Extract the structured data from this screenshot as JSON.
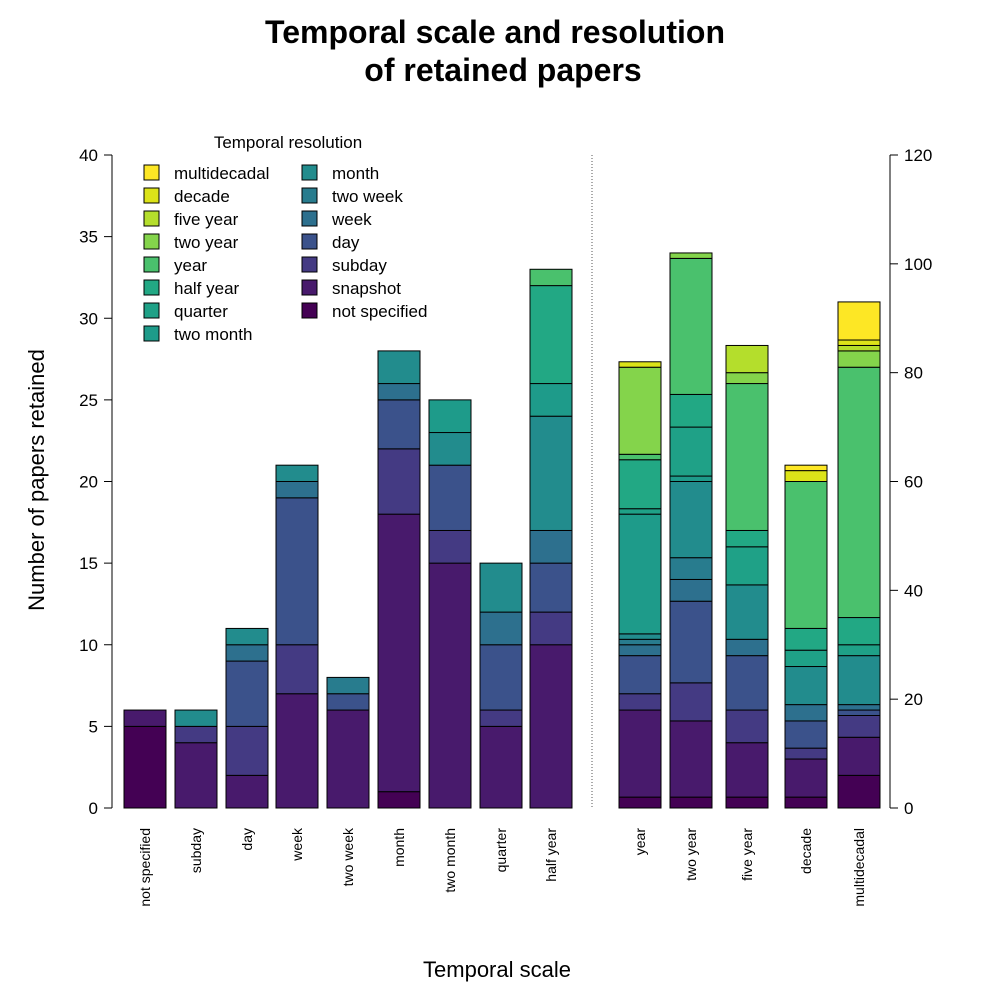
{
  "chart_data": {
    "type": "bar",
    "stacked": true,
    "title": "Temporal scale and resolution\nof retained papers",
    "title_lines": [
      "Temporal scale and resolution",
      "of retained papers"
    ],
    "xlabel": "Temporal scale",
    "ylabel": "Number of papers retained",
    "legend_title": "Temporal resolution",
    "legend_placement": "top-left",
    "grid": false,
    "resolutions": [
      "multidecadal",
      "decade",
      "five year",
      "two year",
      "year",
      "half year",
      "quarter",
      "two month",
      "month",
      "two week",
      "week",
      "day",
      "subday",
      "snapshot",
      "not specified"
    ],
    "colors": {
      "multidecadal": "#FDE725",
      "decade": "#DCE319",
      "five year": "#B4DE2C",
      "two year": "#84D44B",
      "year": "#4AC16D",
      "half year": "#22A884",
      "quarter": "#1FA187",
      "two month": "#1E9B8A",
      "month": "#228C8D",
      "two week": "#287C8E",
      "week": "#2D708E",
      "day": "#3B528B",
      "subday": "#443A83",
      "snapshot": "#481A6C",
      "not specified": "#440154"
    },
    "panels": [
      {
        "axis_side": "left",
        "ylim": [
          0,
          40
        ],
        "yticks": [
          0,
          5,
          10,
          15,
          20,
          25,
          30,
          35,
          40
        ],
        "bars": [
          {
            "category": "not specified",
            "segments": [
              {
                "res": "not specified",
                "value": 5
              },
              {
                "res": "snapshot",
                "value": 1
              }
            ]
          },
          {
            "category": "subday",
            "segments": [
              {
                "res": "snapshot",
                "value": 4
              },
              {
                "res": "subday",
                "value": 1
              },
              {
                "res": "month",
                "value": 1
              }
            ]
          },
          {
            "category": "day",
            "segments": [
              {
                "res": "snapshot",
                "value": 2
              },
              {
                "res": "subday",
                "value": 3
              },
              {
                "res": "day",
                "value": 4
              },
              {
                "res": "week",
                "value": 1
              },
              {
                "res": "month",
                "value": 1
              }
            ]
          },
          {
            "category": "week",
            "segments": [
              {
                "res": "snapshot",
                "value": 7
              },
              {
                "res": "subday",
                "value": 3
              },
              {
                "res": "day",
                "value": 9
              },
              {
                "res": "week",
                "value": 1
              },
              {
                "res": "month",
                "value": 1
              }
            ]
          },
          {
            "category": "two week",
            "segments": [
              {
                "res": "snapshot",
                "value": 6
              },
              {
                "res": "day",
                "value": 1
              },
              {
                "res": "two week",
                "value": 1
              }
            ]
          },
          {
            "category": "month",
            "segments": [
              {
                "res": "not specified",
                "value": 1
              },
              {
                "res": "snapshot",
                "value": 17
              },
              {
                "res": "subday",
                "value": 4
              },
              {
                "res": "day",
                "value": 3
              },
              {
                "res": "week",
                "value": 1
              },
              {
                "res": "month",
                "value": 2
              }
            ]
          },
          {
            "category": "two month",
            "segments": [
              {
                "res": "snapshot",
                "value": 15
              },
              {
                "res": "subday",
                "value": 2
              },
              {
                "res": "day",
                "value": 4
              },
              {
                "res": "month",
                "value": 2
              },
              {
                "res": "two month",
                "value": 2
              }
            ]
          },
          {
            "category": "quarter",
            "segments": [
              {
                "res": "snapshot",
                "value": 5
              },
              {
                "res": "subday",
                "value": 1
              },
              {
                "res": "day",
                "value": 4
              },
              {
                "res": "week",
                "value": 2
              },
              {
                "res": "month",
                "value": 3
              }
            ]
          },
          {
            "category": "half year",
            "segments": [
              {
                "res": "snapshot",
                "value": 10
              },
              {
                "res": "subday",
                "value": 2
              },
              {
                "res": "day",
                "value": 3
              },
              {
                "res": "week",
                "value": 2
              },
              {
                "res": "month",
                "value": 7
              },
              {
                "res": "two month",
                "value": 2
              },
              {
                "res": "half year",
                "value": 6
              },
              {
                "res": "year",
                "value": 1
              }
            ]
          }
        ]
      },
      {
        "axis_side": "right",
        "ylim": [
          0,
          120
        ],
        "yticks": [
          0,
          20,
          40,
          60,
          80,
          100,
          120
        ],
        "bars": [
          {
            "category": "year",
            "segments": [
              {
                "res": "not specified",
                "value": 2
              },
              {
                "res": "snapshot",
                "value": 16
              },
              {
                "res": "subday",
                "value": 3
              },
              {
                "res": "day",
                "value": 7
              },
              {
                "res": "week",
                "value": 2
              },
              {
                "res": "two week",
                "value": 1
              },
              {
                "res": "month",
                "value": 1
              },
              {
                "res": "two month",
                "value": 22
              },
              {
                "res": "quarter",
                "value": 1
              },
              {
                "res": "half year",
                "value": 9
              },
              {
                "res": "year",
                "value": 1
              },
              {
                "res": "two year",
                "value": 16
              },
              {
                "res": "decade",
                "value": 1
              }
            ]
          },
          {
            "category": "two year",
            "segments": [
              {
                "res": "not specified",
                "value": 2
              },
              {
                "res": "snapshot",
                "value": 14
              },
              {
                "res": "subday",
                "value": 7
              },
              {
                "res": "day",
                "value": 15
              },
              {
                "res": "week",
                "value": 4
              },
              {
                "res": "two week",
                "value": 4
              },
              {
                "res": "month",
                "value": 14
              },
              {
                "res": "two month",
                "value": 1
              },
              {
                "res": "quarter",
                "value": 9
              },
              {
                "res": "half year",
                "value": 6
              },
              {
                "res": "year",
                "value": 25
              },
              {
                "res": "two year",
                "value": 1
              }
            ]
          },
          {
            "category": "five year",
            "segments": [
              {
                "res": "not specified",
                "value": 2
              },
              {
                "res": "snapshot",
                "value": 10
              },
              {
                "res": "subday",
                "value": 6
              },
              {
                "res": "day",
                "value": 10
              },
              {
                "res": "week",
                "value": 3
              },
              {
                "res": "month",
                "value": 10
              },
              {
                "res": "quarter",
                "value": 7
              },
              {
                "res": "half year",
                "value": 3
              },
              {
                "res": "year",
                "value": 27
              },
              {
                "res": "two year",
                "value": 2
              },
              {
                "res": "five year",
                "value": 5
              }
            ]
          },
          {
            "category": "decade",
            "segments": [
              {
                "res": "not specified",
                "value": 2
              },
              {
                "res": "snapshot",
                "value": 7
              },
              {
                "res": "subday",
                "value": 2
              },
              {
                "res": "day",
                "value": 5
              },
              {
                "res": "week",
                "value": 3
              },
              {
                "res": "month",
                "value": 7
              },
              {
                "res": "quarter",
                "value": 3
              },
              {
                "res": "half year",
                "value": 4
              },
              {
                "res": "year",
                "value": 27
              },
              {
                "res": "decade",
                "value": 2
              },
              {
                "res": "multidecadal",
                "value": 1
              }
            ]
          },
          {
            "category": "multidecadal",
            "segments": [
              {
                "res": "not specified",
                "value": 6
              },
              {
                "res": "snapshot",
                "value": 7
              },
              {
                "res": "subday",
                "value": 4
              },
              {
                "res": "day",
                "value": 1
              },
              {
                "res": "week",
                "value": 1
              },
              {
                "res": "month",
                "value": 9
              },
              {
                "res": "quarter",
                "value": 2
              },
              {
                "res": "half year",
                "value": 5
              },
              {
                "res": "year",
                "value": 46
              },
              {
                "res": "two year",
                "value": 3
              },
              {
                "res": "five year",
                "value": 1
              },
              {
                "res": "decade",
                "value": 1
              },
              {
                "res": "multidecadal",
                "value": 7
              }
            ]
          }
        ]
      }
    ]
  }
}
